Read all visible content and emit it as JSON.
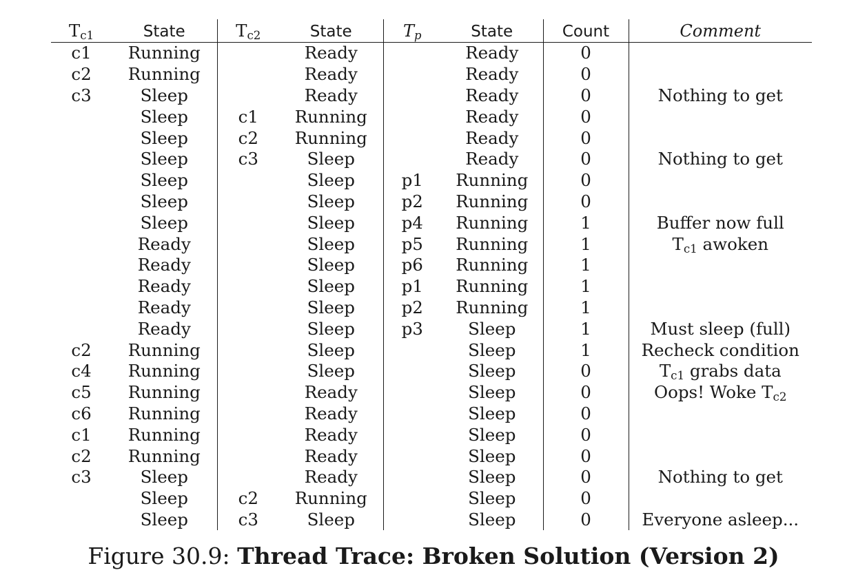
{
  "table": {
    "headers": {
      "tc1": {
        "base": "T",
        "sub": "c1"
      },
      "state1": "State",
      "tc2": {
        "base": "T",
        "sub": "c2"
      },
      "state2": "State",
      "tp": {
        "base": "T",
        "sub": "p"
      },
      "state3": "State",
      "count": "Count",
      "comment": "Comment"
    },
    "rows": [
      {
        "c1": "c1",
        "s1": "Running",
        "c2": "",
        "s2": "Ready",
        "p": "",
        "s3": "Ready",
        "count": "0",
        "comment": []
      },
      {
        "c1": "c2",
        "s1": "Running",
        "c2": "",
        "s2": "Ready",
        "p": "",
        "s3": "Ready",
        "count": "0",
        "comment": []
      },
      {
        "c1": "c3",
        "s1": "Sleep",
        "c2": "",
        "s2": "Ready",
        "p": "",
        "s3": "Ready",
        "count": "0",
        "comment": [
          {
            "t": "Nothing to get"
          }
        ]
      },
      {
        "c1": "",
        "s1": "Sleep",
        "c2": "c1",
        "s2": "Running",
        "p": "",
        "s3": "Ready",
        "count": "0",
        "comment": []
      },
      {
        "c1": "",
        "s1": "Sleep",
        "c2": "c2",
        "s2": "Running",
        "p": "",
        "s3": "Ready",
        "count": "0",
        "comment": []
      },
      {
        "c1": "",
        "s1": "Sleep",
        "c2": "c3",
        "s2": "Sleep",
        "p": "",
        "s3": "Ready",
        "count": "0",
        "comment": [
          {
            "t": "Nothing to get"
          }
        ]
      },
      {
        "c1": "",
        "s1": "Sleep",
        "c2": "",
        "s2": "Sleep",
        "p": "p1",
        "s3": "Running",
        "count": "0",
        "comment": []
      },
      {
        "c1": "",
        "s1": "Sleep",
        "c2": "",
        "s2": "Sleep",
        "p": "p2",
        "s3": "Running",
        "count": "0",
        "comment": []
      },
      {
        "c1": "",
        "s1": "Sleep",
        "c2": "",
        "s2": "Sleep",
        "p": "p4",
        "s3": "Running",
        "count": "1",
        "comment": [
          {
            "t": "Buffer now full"
          }
        ]
      },
      {
        "c1": "",
        "s1": "Ready",
        "c2": "",
        "s2": "Sleep",
        "p": "p5",
        "s3": "Running",
        "count": "1",
        "comment": [
          {
            "t": "T"
          },
          {
            "sub": "c1"
          },
          {
            "t": " awoken"
          }
        ]
      },
      {
        "c1": "",
        "s1": "Ready",
        "c2": "",
        "s2": "Sleep",
        "p": "p6",
        "s3": "Running",
        "count": "1",
        "comment": []
      },
      {
        "c1": "",
        "s1": "Ready",
        "c2": "",
        "s2": "Sleep",
        "p": "p1",
        "s3": "Running",
        "count": "1",
        "comment": []
      },
      {
        "c1": "",
        "s1": "Ready",
        "c2": "",
        "s2": "Sleep",
        "p": "p2",
        "s3": "Running",
        "count": "1",
        "comment": []
      },
      {
        "c1": "",
        "s1": "Ready",
        "c2": "",
        "s2": "Sleep",
        "p": "p3",
        "s3": "Sleep",
        "count": "1",
        "comment": [
          {
            "t": "Must sleep (full)"
          }
        ]
      },
      {
        "c1": "c2",
        "s1": "Running",
        "c2": "",
        "s2": "Sleep",
        "p": "",
        "s3": "Sleep",
        "count": "1",
        "comment": [
          {
            "t": "Recheck condition"
          }
        ]
      },
      {
        "c1": "c4",
        "s1": "Running",
        "c2": "",
        "s2": "Sleep",
        "p": "",
        "s3": "Sleep",
        "count": "0",
        "comment": [
          {
            "t": "T"
          },
          {
            "sub": "c1"
          },
          {
            "t": " grabs data"
          }
        ]
      },
      {
        "c1": "c5",
        "s1": "Running",
        "c2": "",
        "s2": "Ready",
        "p": "",
        "s3": "Sleep",
        "count": "0",
        "comment": [
          {
            "t": "Oops! Woke T"
          },
          {
            "sub": "c2"
          }
        ]
      },
      {
        "c1": "c6",
        "s1": "Running",
        "c2": "",
        "s2": "Ready",
        "p": "",
        "s3": "Sleep",
        "count": "0",
        "comment": []
      },
      {
        "c1": "c1",
        "s1": "Running",
        "c2": "",
        "s2": "Ready",
        "p": "",
        "s3": "Sleep",
        "count": "0",
        "comment": []
      },
      {
        "c1": "c2",
        "s1": "Running",
        "c2": "",
        "s2": "Ready",
        "p": "",
        "s3": "Sleep",
        "count": "0",
        "comment": []
      },
      {
        "c1": "c3",
        "s1": "Sleep",
        "c2": "",
        "s2": "Ready",
        "p": "",
        "s3": "Sleep",
        "count": "0",
        "comment": [
          {
            "t": "Nothing to get"
          }
        ]
      },
      {
        "c1": "",
        "s1": "Sleep",
        "c2": "c2",
        "s2": "Running",
        "p": "",
        "s3": "Sleep",
        "count": "0",
        "comment": []
      },
      {
        "c1": "",
        "s1": "Sleep",
        "c2": "c3",
        "s2": "Sleep",
        "p": "",
        "s3": "Sleep",
        "count": "0",
        "comment": [
          {
            "t": "Everyone asleep..."
          }
        ]
      }
    ]
  },
  "caption": {
    "label": "Figure 30.9: ",
    "title": "Thread Trace: Broken Solution (Version 2)"
  }
}
